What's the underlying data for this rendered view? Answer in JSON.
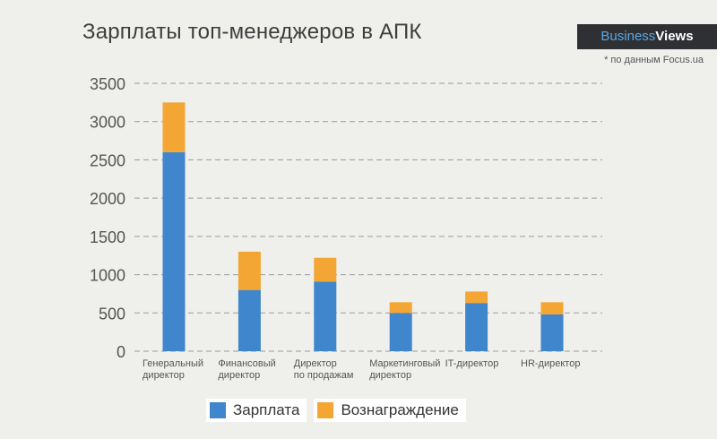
{
  "header": {
    "title": "Зарплаты топ-менеджеров в АПК",
    "brand_part1": "Business",
    "brand_part2": "Views",
    "source": "* по данным Focus.ua"
  },
  "legend": {
    "salary_label": "Зарплата",
    "bonus_label": "Вознаграждение"
  },
  "colors": {
    "salary": "#3f86cc",
    "bonus": "#f4a634",
    "grid": "#9a9a9a"
  },
  "chart_data": {
    "type": "bar",
    "stacked": true,
    "title": "Зарплаты топ-менеджеров в АПК",
    "categories": [
      [
        "Генеральный",
        "директор"
      ],
      [
        "Финансовый",
        "директор"
      ],
      [
        "Директор",
        "по продажам"
      ],
      [
        "Маркетинговый",
        "директор"
      ],
      [
        "IT-директор"
      ],
      [
        "HR-директор"
      ]
    ],
    "series": [
      {
        "name": "Зарплата",
        "values": [
          2600,
          800,
          910,
          500,
          630,
          480
        ]
      },
      {
        "name": "Вознаграждение",
        "values": [
          650,
          500,
          310,
          140,
          150,
          160
        ]
      }
    ],
    "yticks": [
      0,
      500,
      1000,
      1500,
      2000,
      2500,
      3000,
      3500
    ],
    "ylim": [
      0,
      3500
    ],
    "xlabel": "",
    "ylabel": "",
    "grid": "dashed horizontal",
    "legend_position": "bottom"
  }
}
